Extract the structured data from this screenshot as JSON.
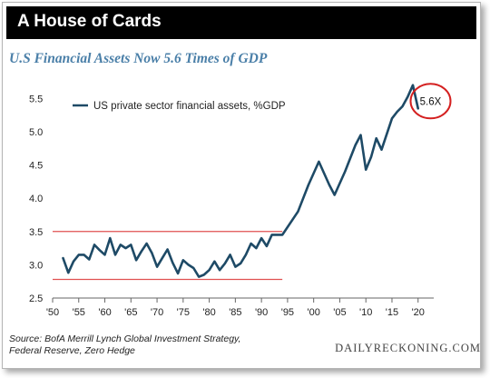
{
  "header": {
    "title": "A House of Cards"
  },
  "footer": {
    "source_line1": "Source: BofA Merrill Lynch Global Investment Strategy,",
    "source_line2": "Federal Reserve, Zero Hedge",
    "brand": "DAILYRECKONING.COM"
  },
  "colors": {
    "line": "#1e4a66",
    "band": "#e05050",
    "circle": "#d42020",
    "subtitle": "#4a7fa8"
  },
  "chart_data": {
    "type": "line",
    "title": "U.S Financial Assets Now 5.6 Times of GDP",
    "xlabel": "",
    "ylabel": "",
    "xlim": [
      1950,
      2023
    ],
    "ylim": [
      2.5,
      5.75
    ],
    "yticks": [
      2.5,
      3.0,
      3.5,
      4.0,
      4.5,
      5.0,
      5.5
    ],
    "ytick_labels": [
      "2.5",
      "3.0",
      "3.5",
      "4.0",
      "4.5",
      "5.0",
      "5.5"
    ],
    "xticks": [
      1950,
      1955,
      1960,
      1965,
      1970,
      1975,
      1980,
      1985,
      1990,
      1995,
      2000,
      2005,
      2010,
      2015,
      2020
    ],
    "xtick_labels": [
      "'50",
      "'55",
      "'60",
      "'65",
      "'70",
      "'75",
      "'80",
      "'85",
      "'90",
      "'95",
      "'00",
      "'05",
      "'10",
      "'15",
      "'20"
    ],
    "grid": false,
    "legend": "top-left",
    "series": [
      {
        "name": "US private sector financial assets, %GDP",
        "points": [
          [
            1952,
            3.1
          ],
          [
            1953,
            2.88
          ],
          [
            1954,
            3.05
          ],
          [
            1955,
            3.15
          ],
          [
            1956,
            3.15
          ],
          [
            1957,
            3.08
          ],
          [
            1958,
            3.3
          ],
          [
            1959,
            3.22
          ],
          [
            1960,
            3.15
          ],
          [
            1961,
            3.4
          ],
          [
            1962,
            3.15
          ],
          [
            1963,
            3.3
          ],
          [
            1964,
            3.25
          ],
          [
            1965,
            3.3
          ],
          [
            1966,
            3.07
          ],
          [
            1967,
            3.2
          ],
          [
            1968,
            3.32
          ],
          [
            1969,
            3.18
          ],
          [
            1970,
            2.97
          ],
          [
            1971,
            3.1
          ],
          [
            1972,
            3.23
          ],
          [
            1973,
            3.03
          ],
          [
            1974,
            2.87
          ],
          [
            1975,
            3.07
          ],
          [
            1976,
            3.0
          ],
          [
            1977,
            2.95
          ],
          [
            1978,
            2.82
          ],
          [
            1979,
            2.85
          ],
          [
            1980,
            2.92
          ],
          [
            1981,
            3.05
          ],
          [
            1982,
            2.92
          ],
          [
            1983,
            3.02
          ],
          [
            1984,
            3.15
          ],
          [
            1985,
            2.97
          ],
          [
            1986,
            3.02
          ],
          [
            1987,
            3.15
          ],
          [
            1988,
            3.32
          ],
          [
            1989,
            3.25
          ],
          [
            1990,
            3.4
          ],
          [
            1991,
            3.28
          ],
          [
            1992,
            3.45
          ],
          [
            1993,
            3.45
          ],
          [
            1994,
            3.45
          ],
          [
            1997,
            3.8
          ],
          [
            1999,
            4.2
          ],
          [
            2001,
            4.55
          ],
          [
            2003,
            4.2
          ],
          [
            2004,
            4.05
          ],
          [
            2006,
            4.4
          ],
          [
            2008,
            4.8
          ],
          [
            2009,
            4.95
          ],
          [
            2010,
            4.43
          ],
          [
            2011,
            4.62
          ],
          [
            2012,
            4.9
          ],
          [
            2013,
            4.73
          ],
          [
            2015,
            5.2
          ],
          [
            2016,
            5.3
          ],
          [
            2017,
            5.38
          ],
          [
            2018,
            5.52
          ],
          [
            2019,
            5.7
          ],
          [
            2020,
            5.35
          ]
        ]
      }
    ],
    "reference_lines": [
      {
        "y": 3.5,
        "x": [
          1950,
          1994
        ]
      },
      {
        "y": 2.78,
        "x": [
          1950,
          1994
        ]
      }
    ],
    "annotations": [
      {
        "text": "5.6X",
        "x": 2021,
        "y": 5.5,
        "shape": "circle"
      }
    ]
  }
}
